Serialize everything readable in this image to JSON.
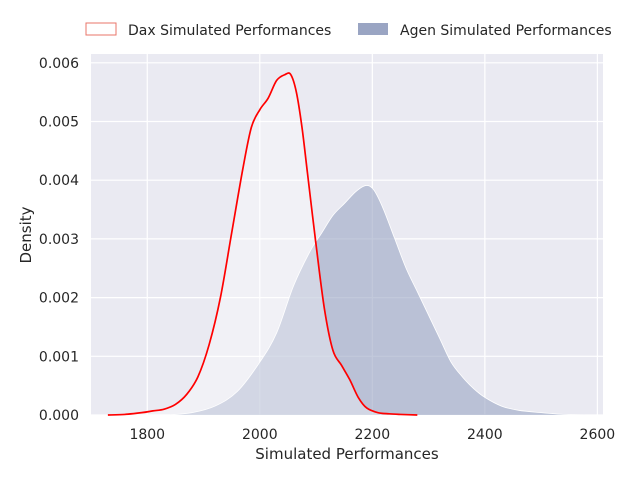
{
  "chart_data": {
    "type": "area",
    "title": "",
    "xlabel": "Simulated Performances",
    "ylabel": "Density",
    "xlim": [
      1700,
      2610
    ],
    "ylim": [
      0,
      0.00615
    ],
    "x_ticks": [
      1800,
      2000,
      2200,
      2400,
      2600
    ],
    "y_ticks": [
      0.0,
      0.001,
      0.002,
      0.003,
      0.004,
      0.005,
      0.006
    ],
    "x_tick_labels": [
      "1800",
      "2000",
      "2200",
      "2400",
      "2600"
    ],
    "y_tick_labels": [
      "0.000",
      "0.001",
      "0.002",
      "0.003",
      "0.004",
      "0.005",
      "0.006"
    ],
    "grid": true,
    "legend_position": "top",
    "colors": {
      "background": "#eaeaf2",
      "grid": "#ffffff",
      "dax_line": "#ff0000",
      "dax_legend_edge": "#e8756a",
      "agen_fill": "#9aa5c3",
      "agen_edge": "#ffffff"
    },
    "series": [
      {
        "name": "Dax Simulated Performances",
        "style": "line",
        "x": [
          1730,
          1760,
          1790,
          1810,
          1830,
          1850,
          1870,
          1890,
          1910,
          1930,
          1950,
          1970,
          1985,
          2000,
          2015,
          2030,
          2045,
          2055,
          2065,
          2075,
          2085,
          2100,
          2115,
          2130,
          2145,
          2160,
          2175,
          2190,
          2210,
          2230,
          2250,
          2280
        ],
        "y": [
          0.0,
          1e-05,
          4e-05,
          7e-05,
          0.0001,
          0.00018,
          0.00035,
          0.00065,
          0.0012,
          0.002,
          0.0031,
          0.0042,
          0.0049,
          0.0052,
          0.0054,
          0.0057,
          0.0058,
          0.0058,
          0.0055,
          0.0049,
          0.0041,
          0.0029,
          0.0018,
          0.0011,
          0.00085,
          0.0006,
          0.0003,
          0.00012,
          4e-05,
          2e-05,
          1e-05,
          0.0
        ]
      },
      {
        "name": "Agen Simulated Performances",
        "style": "fill",
        "x": [
          1840,
          1880,
          1920,
          1960,
          2000,
          2030,
          2060,
          2090,
          2110,
          2130,
          2150,
          2170,
          2185,
          2195,
          2205,
          2220,
          2240,
          2260,
          2280,
          2300,
          2320,
          2340,
          2360,
          2380,
          2400,
          2430,
          2460,
          2500,
          2540,
          2580
        ],
        "y": [
          0.0,
          4e-05,
          0.00015,
          0.0004,
          0.0009,
          0.0014,
          0.0022,
          0.0028,
          0.0031,
          0.0034,
          0.0036,
          0.0038,
          0.0039,
          0.0039,
          0.0038,
          0.0035,
          0.003,
          0.0025,
          0.0021,
          0.0017,
          0.0013,
          0.0009,
          0.00065,
          0.00045,
          0.0003,
          0.00015,
          8e-05,
          4e-05,
          1e-05,
          0.0
        ]
      }
    ]
  }
}
